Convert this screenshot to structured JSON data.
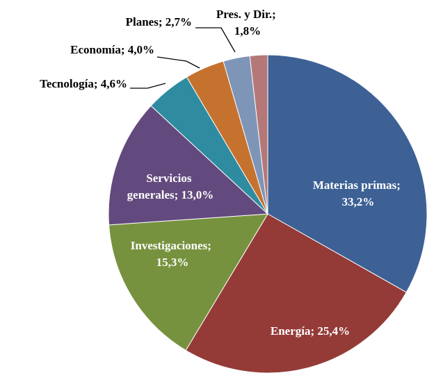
{
  "chart_data": {
    "type": "pie",
    "categories": [
      "Materias primas",
      "Energía",
      "Investigaciones",
      "Servicios generales",
      "Tecnología",
      "Economía",
      "Planes",
      "Pres. y Dir."
    ],
    "values": [
      33.2,
      25.4,
      15.3,
      13.0,
      4.6,
      4.0,
      2.7,
      1.8
    ],
    "value_labels": [
      "Materias primas; 33,2%",
      "Energía; 25,4%",
      "Investigaciones; 15,3%",
      "Servicios generales; 13,0%",
      "Tecnología; 4,6%",
      "Economía; 4,0%",
      "Planes; 2,7%",
      "Pres. y Dir.; 1,8%"
    ],
    "colors": [
      "#3d6195",
      "#943b38",
      "#77923e",
      "#634a7e",
      "#2f8ba0",
      "#c6722f",
      "#7e95b8",
      "#b57878"
    ]
  }
}
